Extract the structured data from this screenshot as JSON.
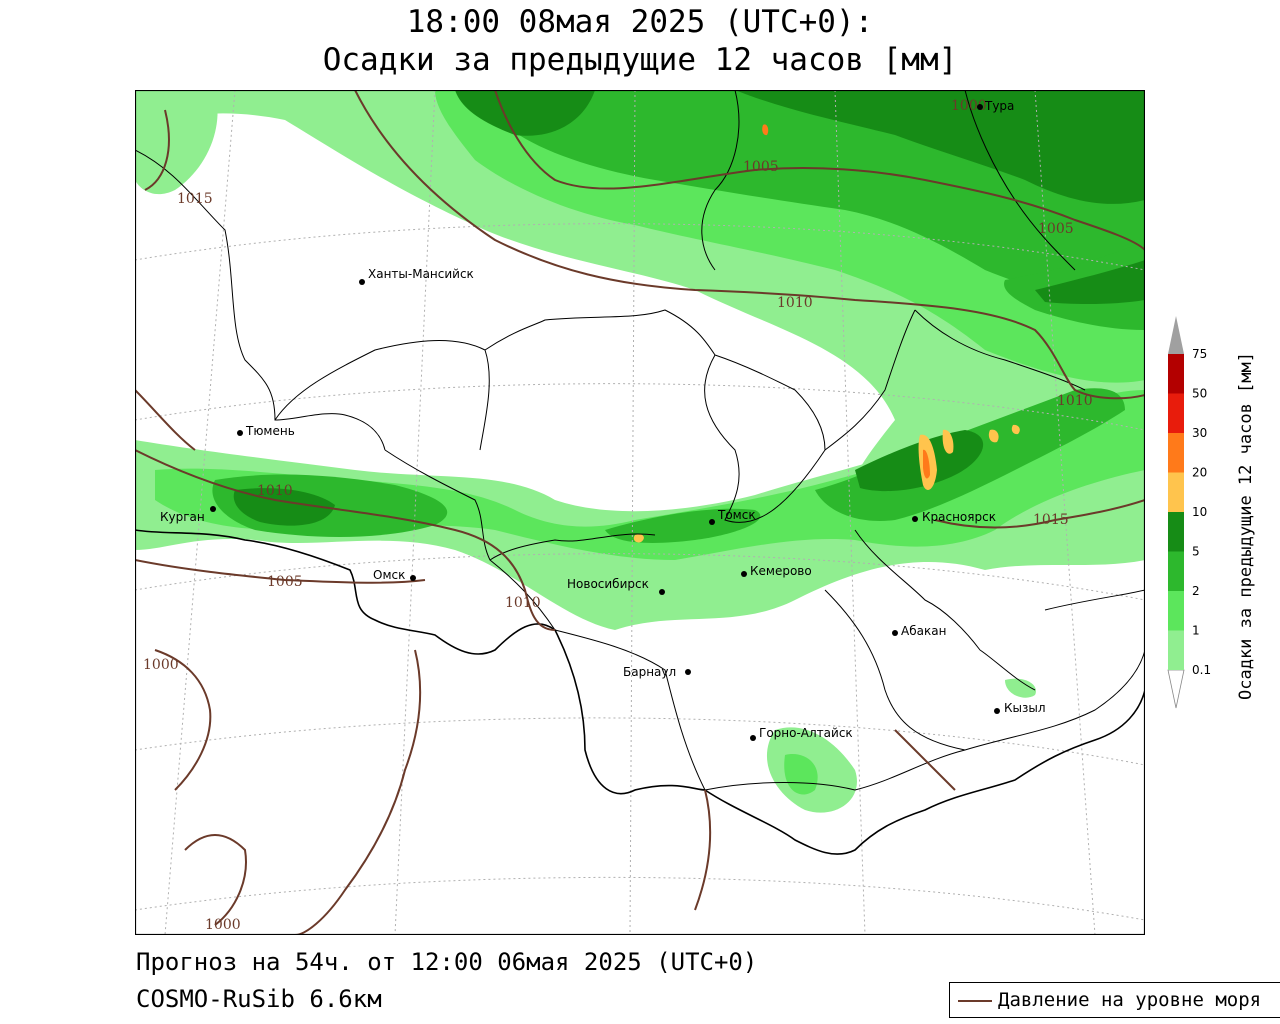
{
  "header": {
    "title_line1": "18:00 08мая 2025 (UTC+0):",
    "title_line2": "Осадки за предыдущие 12 часов [мм]"
  },
  "footer": {
    "forecast": "Прогноз на 54ч. от 12:00 06мая 2025 (UTC+0)",
    "model": "COSMO-RuSib 6.6км"
  },
  "legend": {
    "pressure_label": "Давление на уровне моря",
    "pressure_color": "#6b3a2a"
  },
  "colorbar": {
    "title": "Осадки за предыдущие 12 часов [мм]",
    "levels": [
      {
        "label": "0.1",
        "color": "#90ee90"
      },
      {
        "label": "1",
        "color": "#5ce65c"
      },
      {
        "label": "2",
        "color": "#2db82d"
      },
      {
        "label": "5",
        "color": "#168c16"
      },
      {
        "label": "10",
        "color": "#ffc44d"
      },
      {
        "label": "20",
        "color": "#ff7a1a"
      },
      {
        "label": "30",
        "color": "#e81c0c"
      },
      {
        "label": "50",
        "color": "#b30000"
      },
      {
        "label": "75",
        "color": "#a0a0a0"
      }
    ]
  },
  "cities": [
    {
      "name": "Тура"
    },
    {
      "name": "Ханты-Мансийск"
    },
    {
      "name": "Тюмень"
    },
    {
      "name": "Курган"
    },
    {
      "name": "Омск"
    },
    {
      "name": "Новосибирск"
    },
    {
      "name": "Томск"
    },
    {
      "name": "Кемерово"
    },
    {
      "name": "Красноярск"
    },
    {
      "name": "Барнаул"
    },
    {
      "name": "Абакан"
    },
    {
      "name": "Горно-Алтайск"
    },
    {
      "name": "Кызыл"
    }
  ],
  "isobars": [
    {
      "label": "1015"
    },
    {
      "label": "1010"
    },
    {
      "label": "1005"
    },
    {
      "label": "1000"
    }
  ]
}
